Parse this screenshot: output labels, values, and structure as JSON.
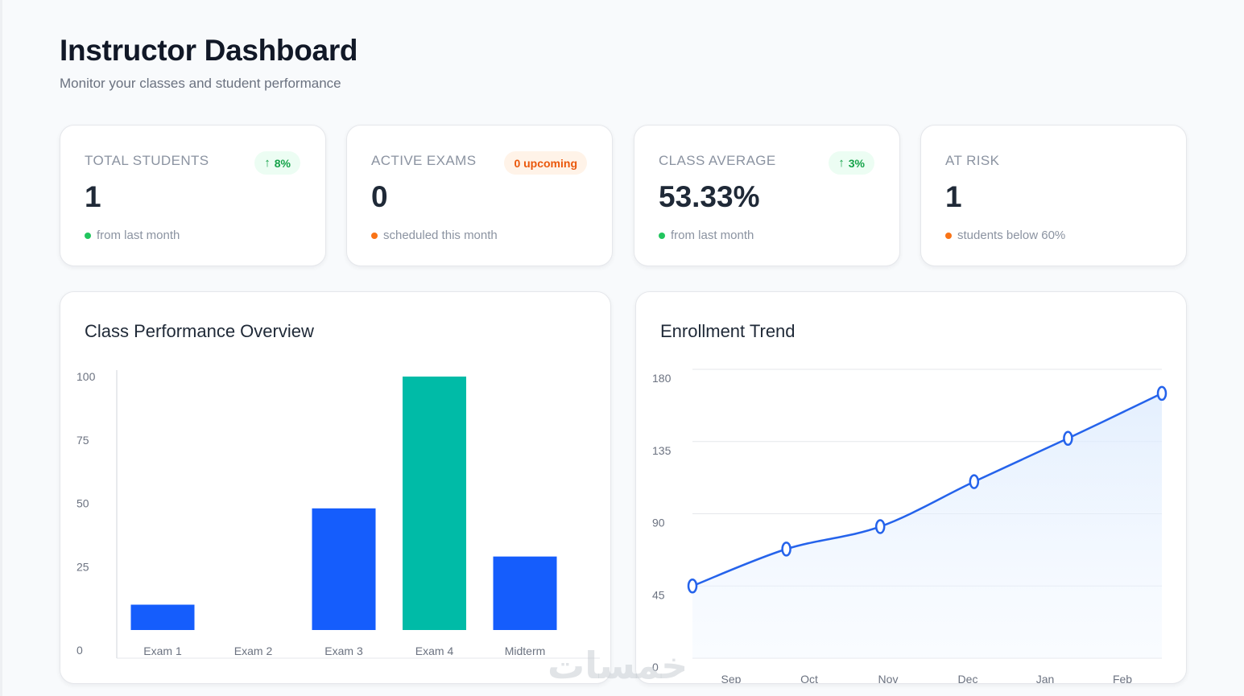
{
  "header": {
    "title": "Instructor Dashboard",
    "subtitle": "Monitor your classes and student performance"
  },
  "stats": [
    {
      "label": "TOTAL STUDENTS",
      "value": "1",
      "badge": "8%",
      "badge_icon": "arrow-up-icon",
      "badge_tone": "green",
      "sub": "from last month",
      "dot_color": "#22c55e"
    },
    {
      "label": "ACTIVE EXAMS",
      "value": "0",
      "badge": "0 upcoming",
      "badge_tone": "orange",
      "sub": "scheduled this month",
      "dot_color": "#f97316"
    },
    {
      "label": "CLASS AVERAGE",
      "value": "53.33%",
      "badge": "3%",
      "badge_icon": "arrow-up-icon",
      "badge_tone": "green",
      "sub": "from last month",
      "dot_color": "#22c55e"
    },
    {
      "label": "AT RISK",
      "value": "1",
      "sub": "students below 60%",
      "dot_color": "#f97316"
    }
  ],
  "watermark": "خمسات",
  "chart_data": [
    {
      "type": "bar",
      "title": "Class Performance Overview",
      "categories": [
        "Exam 1",
        "Exam 2",
        "Exam 3",
        "Exam 4",
        "Midterm"
      ],
      "values": [
        10,
        0,
        48,
        100,
        29
      ],
      "bar_colors": [
        "#155dfc",
        "#155dfc",
        "#155dfc",
        "#00bba7",
        "#155dfc"
      ],
      "ylim": [
        0,
        100
      ],
      "yticks": [
        0,
        25,
        50,
        75,
        100
      ],
      "grid": false
    },
    {
      "type": "area",
      "title": "Enrollment Trend",
      "categories": [
        "Sep",
        "Oct",
        "Nov",
        "Dec",
        "Jan",
        "Feb"
      ],
      "values": [
        45,
        68,
        82,
        110,
        137,
        165
      ],
      "line_color": "#2563eb",
      "ylim": [
        0,
        180
      ],
      "yticks": [
        0,
        45,
        90,
        135,
        180
      ],
      "grid": true
    }
  ]
}
